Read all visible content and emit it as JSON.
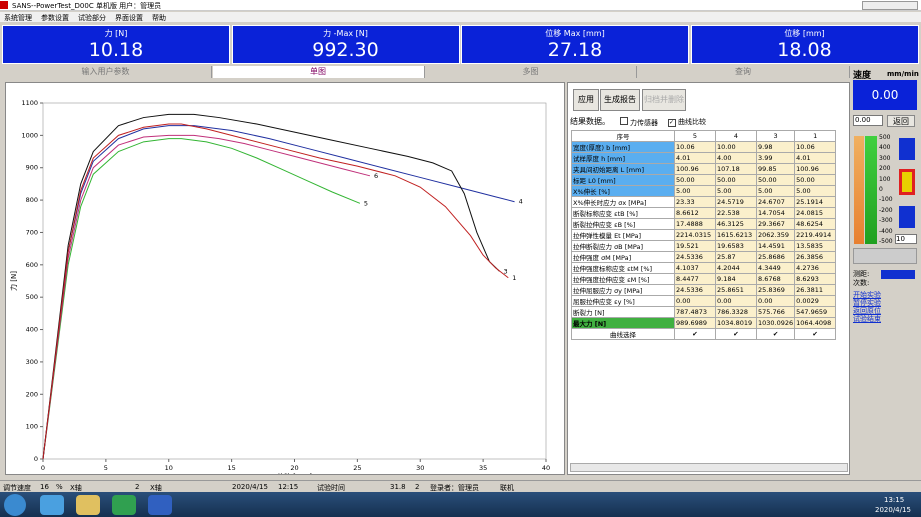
{
  "window_title": "SANS--PowerTest_D00C 单机版 用户：管理员",
  "menu": [
    "系统管理",
    "参数设置",
    "试验部分",
    "界面设置",
    "帮助"
  ],
  "readouts": [
    {
      "label": "力 [N]",
      "value": "10.18"
    },
    {
      "label": "力 -Max [N]",
      "value": "992.30"
    },
    {
      "label": "位移 Max [mm]",
      "value": "27.18"
    },
    {
      "label": "位移 [mm]",
      "value": "18.08"
    }
  ],
  "tabs": [
    "输入用户参数",
    "单图",
    "多图",
    "查询"
  ],
  "chart_data": {
    "type": "line",
    "x_label": "位移 [mm]",
    "y_label": "力 [N]",
    "xlim": [
      0,
      40
    ],
    "ylim": [
      0,
      1100
    ],
    "xticks": [
      0,
      5,
      10,
      15,
      20,
      25,
      30,
      35,
      40
    ],
    "yticks": [
      0,
      100,
      200,
      300,
      400,
      500,
      600,
      700,
      800,
      900,
      1000,
      1100
    ],
    "series": [
      {
        "name": "5",
        "color": "#33b533",
        "x": [
          0,
          1,
          2,
          3,
          4,
          6,
          8,
          10,
          11,
          13,
          15,
          17,
          19,
          21,
          23,
          25.2
        ],
        "values": [
          0,
          300,
          600,
          780,
          880,
          950,
          980,
          990,
          990,
          980,
          960,
          930,
          895,
          860,
          825,
          790
        ]
      },
      {
        "name": "6",
        "color": "#c0307a",
        "x": [
          0,
          1,
          2,
          3,
          4,
          6,
          8,
          10,
          12,
          14,
          16,
          18,
          20,
          22,
          24,
          26
        ],
        "values": [
          0,
          310,
          620,
          800,
          900,
          970,
          995,
          1000,
          1000,
          990,
          975,
          955,
          935,
          915,
          895,
          875
        ]
      },
      {
        "name": "4",
        "color": "#2030a0",
        "x": [
          0,
          1,
          2,
          3,
          4,
          6,
          8,
          10,
          12,
          15,
          18,
          21,
          24,
          27,
          30,
          33,
          36,
          37.5
        ],
        "values": [
          0,
          320,
          640,
          820,
          920,
          990,
          1020,
          1030,
          1030,
          1015,
          990,
          960,
          930,
          900,
          870,
          840,
          810,
          795
        ]
      },
      {
        "name": "3",
        "color": "#101010",
        "x": [
          0,
          1,
          2,
          3,
          4,
          6,
          8,
          10,
          12,
          14,
          17,
          20,
          23,
          26,
          29,
          31,
          32.5,
          33.5,
          34.5,
          35.5,
          36.3
        ],
        "values": [
          0,
          330,
          660,
          850,
          950,
          1030,
          1055,
          1065,
          1065,
          1055,
          1035,
          1010,
          985,
          960,
          935,
          915,
          890,
          820,
          700,
          610,
          580
        ]
      },
      {
        "name": "1",
        "color": "#c02020",
        "x": [
          0,
          1,
          2,
          3,
          4,
          6,
          8,
          10,
          11,
          13,
          16,
          19,
          22,
          25,
          28,
          30,
          32,
          34,
          35,
          36,
          37
        ],
        "values": [
          0,
          320,
          640,
          830,
          930,
          1000,
          1025,
          1035,
          1035,
          1020,
          990,
          960,
          930,
          905,
          875,
          840,
          780,
          690,
          630,
          590,
          560
        ]
      }
    ]
  },
  "buttons": [
    "应用",
    "生成报告",
    "归档并删除"
  ],
  "results_label": "结果数据。",
  "checkboxes": [
    {
      "label": "力传感器",
      "checked": false
    },
    {
      "label": "曲线比较",
      "checked": true
    }
  ],
  "table": {
    "headers": [
      "序号",
      "5",
      "4",
      "3",
      "1"
    ],
    "rows": [
      [
        "宽度(厚度) b [mm]",
        "10.06",
        "10.00",
        "9.98",
        "10.06"
      ],
      [
        "试样厚度 h [mm]",
        "4.01",
        "4.00",
        "3.99",
        "4.01"
      ],
      [
        "夹具间初始距离 L [mm]",
        "100.96",
        "107.18",
        "99.85",
        "100.96"
      ],
      [
        "标距 L0 [mm]",
        "50.00",
        "50.00",
        "50.00",
        "50.00"
      ],
      [
        "X%伸长 [%]",
        "5.00",
        "5.00",
        "5.00",
        "5.00"
      ],
      [
        "X%伸长时应力 σx [MPa]",
        "23.33",
        "24.5719",
        "24.6707",
        "25.1914"
      ],
      [
        "断裂标称应变 εtB [%]",
        "8.6612",
        "22.538",
        "14.7054",
        "24.0815"
      ],
      [
        "断裂拉伸应变 εB [%]",
        "17.4888",
        "46.3125",
        "29.3667",
        "48.6254"
      ],
      [
        "拉伸弹性模量 Et [MPa]",
        "2214.0315",
        "1615.6213",
        "2062.359",
        "2219.4914"
      ],
      [
        "拉伸断裂应力 σB [MPa]",
        "19.521",
        "19.6583",
        "14.4591",
        "13.5835"
      ],
      [
        "拉伸强度 σM [MPa]",
        "24.5336",
        "25.87",
        "25.8686",
        "26.3856"
      ],
      [
        "拉伸强度标称应变 εtM [%]",
        "4.1037",
        "4.2044",
        "4.3449",
        "4.2736"
      ],
      [
        "拉伸强度拉伸应变 εM [%]",
        "8.4477",
        "9.184",
        "8.6768",
        "8.6293"
      ],
      [
        "拉伸屈服应力 σy [MPa]",
        "24.5336",
        "25.8651",
        "25.8369",
        "26.3811"
      ],
      [
        "屈服拉伸应变 εy [%]",
        "0.00",
        "0.00",
        "0.00",
        "0.0029"
      ],
      [
        "断裂力 [N]",
        "787.4873",
        "786.3328",
        "575.766",
        "547.9659"
      ],
      [
        "最大力 [N]",
        "989.6989",
        "1034.8019",
        "1030.0926",
        "1064.4098"
      ],
      [
        "曲线选择",
        "✔",
        "✔",
        "✔",
        "✔"
      ]
    ]
  },
  "speed": {
    "title": "速度",
    "unit": "mm/min",
    "display": "0.00",
    "input": "0.00",
    "button": "返回",
    "scale": [
      "500",
      "400",
      "300",
      "200",
      "100",
      "0",
      "-100",
      "-200",
      "-300",
      "-400",
      "-500"
    ],
    "step": "10",
    "labels": [
      "测距:",
      "次数:"
    ],
    "actions": [
      "开始实验",
      "暂停实验",
      "返回原位",
      "试验结束"
    ]
  },
  "status": [
    "调节速度",
    "16",
    "%",
    "X轴",
    "2",
    "X轴",
    "2020/4/15",
    "12:15",
    "试验时间",
    "31.8",
    "2",
    "登录者：管理员",
    "联机"
  ],
  "taskbar": {
    "time": "13:15",
    "date": "2020/4/15"
  }
}
